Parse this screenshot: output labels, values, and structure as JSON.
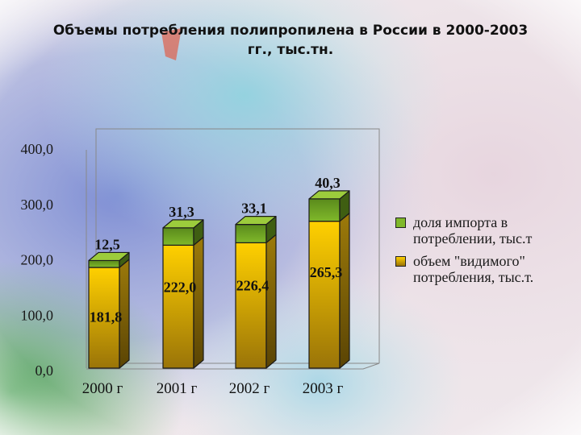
{
  "title": {
    "line1": "Объемы потребления полипропилена в России в 2000-2003",
    "line2": "гг., тыс.тн."
  },
  "colors": {
    "import_front": "#7fb82a",
    "import_top": "#9ccc3c",
    "import_side": "#3f5e12",
    "volume_front_top": "#ffd000",
    "volume_front_bottom": "#9a7408",
    "volume_side": "#5a4404",
    "outline": "#1a1a1a",
    "frame": "#888888"
  },
  "chart_data": {
    "type": "bar",
    "stacked": true,
    "three_d": true,
    "title": "Объемы потребления полипропилена в России в 2000-2003 гг., тыс.тн.",
    "xlabel": "",
    "ylabel": "",
    "categories": [
      "2000 г",
      "2001 г",
      "2002 г",
      "2003 г"
    ],
    "series": [
      {
        "name": "объем \"видимого\" потребления, тыс.т.",
        "values": [
          181.8,
          222.0,
          226.4,
          265.3
        ]
      },
      {
        "name": "доля импорта в потреблении, тыс.т",
        "values": [
          12.5,
          31.3,
          33.1,
          40.3
        ]
      }
    ],
    "data_labels": {
      "volume": [
        "181,8",
        "222,0",
        "226,4",
        "265,3"
      ],
      "import": [
        "12,5",
        "31,3",
        "33,1",
        "40,3"
      ]
    },
    "yticks": [
      "0,0",
      "100,0",
      "200,0",
      "300,0",
      "400,0"
    ],
    "ylim": [
      0,
      400
    ],
    "grid": false,
    "legend_position": "right"
  },
  "legend": {
    "items": [
      {
        "label": "доля импорта в потреблении, тыс.т",
        "color": "#7fb82a"
      },
      {
        "label": "объем \"видимого\" потребления, тыс.т.",
        "color": "#d6a800"
      }
    ]
  }
}
